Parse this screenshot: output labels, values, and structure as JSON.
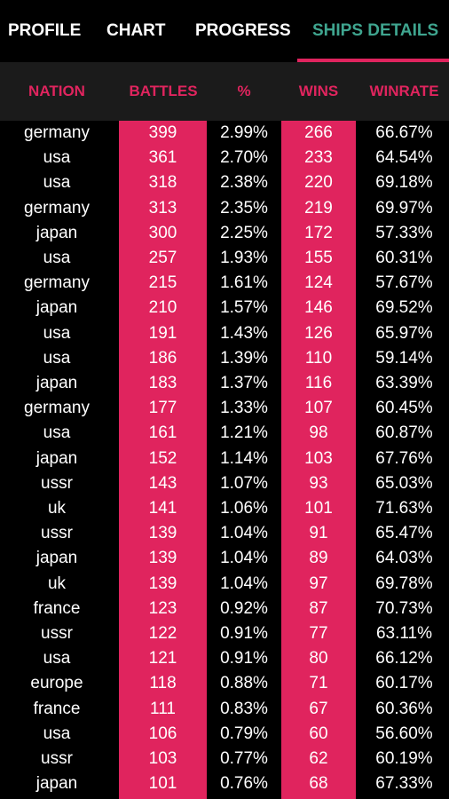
{
  "tabs": [
    {
      "label": "PROFILE"
    },
    {
      "label": "CHART"
    },
    {
      "label": "PROGRESS"
    },
    {
      "label": "SHIPS DETAILS"
    }
  ],
  "active_tab_index": 3,
  "colors": {
    "accent": "#e0245e",
    "active_tab": "#3fa58f",
    "background": "#000000",
    "header_bg": "#1b1b1b"
  },
  "table": {
    "headers": [
      "NATION",
      "BATTLES",
      "%",
      "WINS",
      "WINRATE"
    ],
    "rows": [
      [
        "germany",
        "399",
        "2.99%",
        "266",
        "66.67%"
      ],
      [
        "usa",
        "361",
        "2.70%",
        "233",
        "64.54%"
      ],
      [
        "usa",
        "318",
        "2.38%",
        "220",
        "69.18%"
      ],
      [
        "germany",
        "313",
        "2.35%",
        "219",
        "69.97%"
      ],
      [
        "japan",
        "300",
        "2.25%",
        "172",
        "57.33%"
      ],
      [
        "usa",
        "257",
        "1.93%",
        "155",
        "60.31%"
      ],
      [
        "germany",
        "215",
        "1.61%",
        "124",
        "57.67%"
      ],
      [
        "japan",
        "210",
        "1.57%",
        "146",
        "69.52%"
      ],
      [
        "usa",
        "191",
        "1.43%",
        "126",
        "65.97%"
      ],
      [
        "usa",
        "186",
        "1.39%",
        "110",
        "59.14%"
      ],
      [
        "japan",
        "183",
        "1.37%",
        "116",
        "63.39%"
      ],
      [
        "germany",
        "177",
        "1.33%",
        "107",
        "60.45%"
      ],
      [
        "usa",
        "161",
        "1.21%",
        "98",
        "60.87%"
      ],
      [
        "japan",
        "152",
        "1.14%",
        "103",
        "67.76%"
      ],
      [
        "ussr",
        "143",
        "1.07%",
        "93",
        "65.03%"
      ],
      [
        "uk",
        "141",
        "1.06%",
        "101",
        "71.63%"
      ],
      [
        "ussr",
        "139",
        "1.04%",
        "91",
        "65.47%"
      ],
      [
        "japan",
        "139",
        "1.04%",
        "89",
        "64.03%"
      ],
      [
        "uk",
        "139",
        "1.04%",
        "97",
        "69.78%"
      ],
      [
        "france",
        "123",
        "0.92%",
        "87",
        "70.73%"
      ],
      [
        "ussr",
        "122",
        "0.91%",
        "77",
        "63.11%"
      ],
      [
        "usa",
        "121",
        "0.91%",
        "80",
        "66.12%"
      ],
      [
        "europe",
        "118",
        "0.88%",
        "71",
        "60.17%"
      ],
      [
        "france",
        "111",
        "0.83%",
        "67",
        "60.36%"
      ],
      [
        "usa",
        "106",
        "0.79%",
        "60",
        "56.60%"
      ],
      [
        "ussr",
        "103",
        "0.77%",
        "62",
        "60.19%"
      ],
      [
        "japan",
        "101",
        "0.76%",
        "68",
        "67.33%"
      ]
    ]
  }
}
